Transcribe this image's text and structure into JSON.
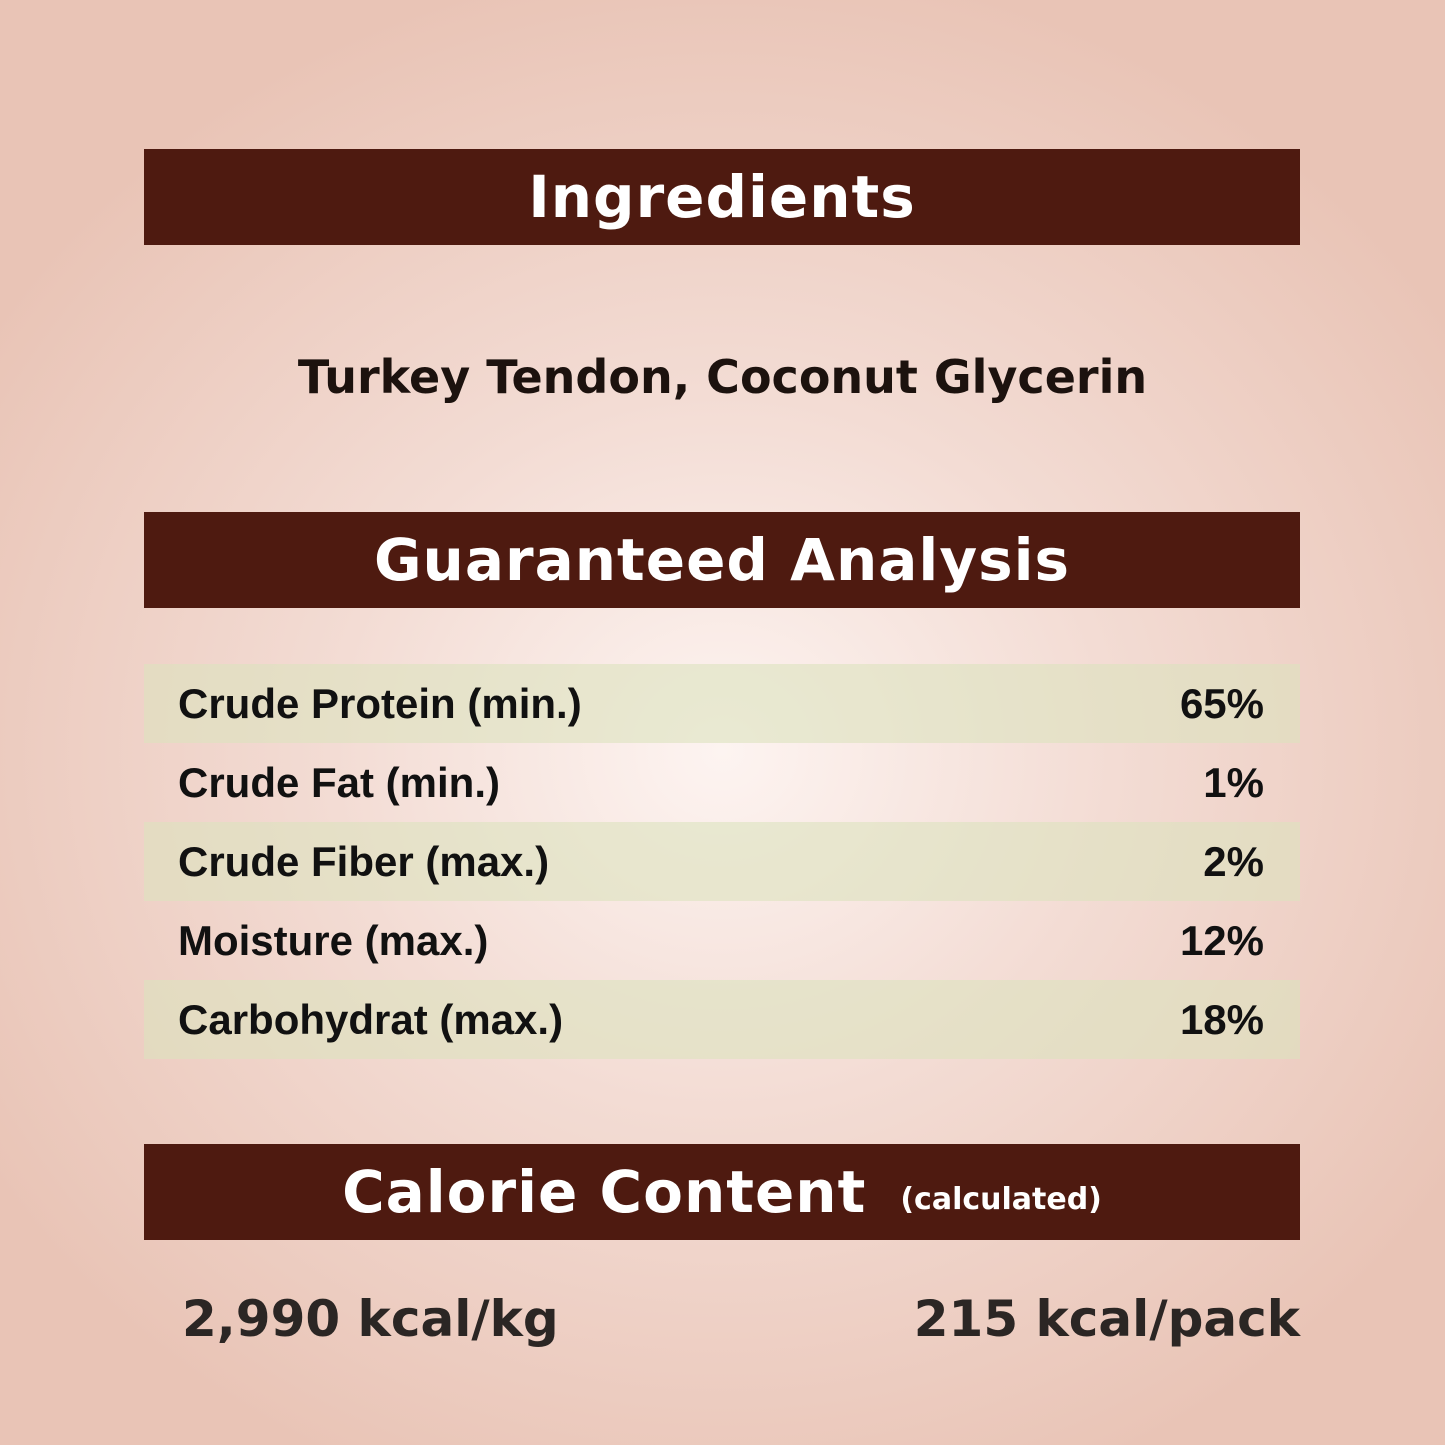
{
  "ingredients": {
    "heading": "Ingredients",
    "text": "Turkey Tendon, Coconut Glycerin"
  },
  "analysis": {
    "heading": "Guaranteed Analysis",
    "rows": [
      {
        "label": "Crude Protein (min.)",
        "value": "65%"
      },
      {
        "label": "Crude Fat (min.)",
        "value": "1%"
      },
      {
        "label": "Crude Fiber (max.)",
        "value": "2%"
      },
      {
        "label": "Moisture (max.)",
        "value": "12%"
      },
      {
        "label": "Carbohydrat (max.)",
        "value": "18%"
      }
    ]
  },
  "calorie": {
    "heading": "Calorie Content",
    "subheading": "(calculated)",
    "per_kg": "2,990 kcal/kg",
    "per_pack": "215 kcal/pack"
  },
  "colors": {
    "header_bar": "#4e1a10",
    "row_shade": "#e3e4c6"
  }
}
